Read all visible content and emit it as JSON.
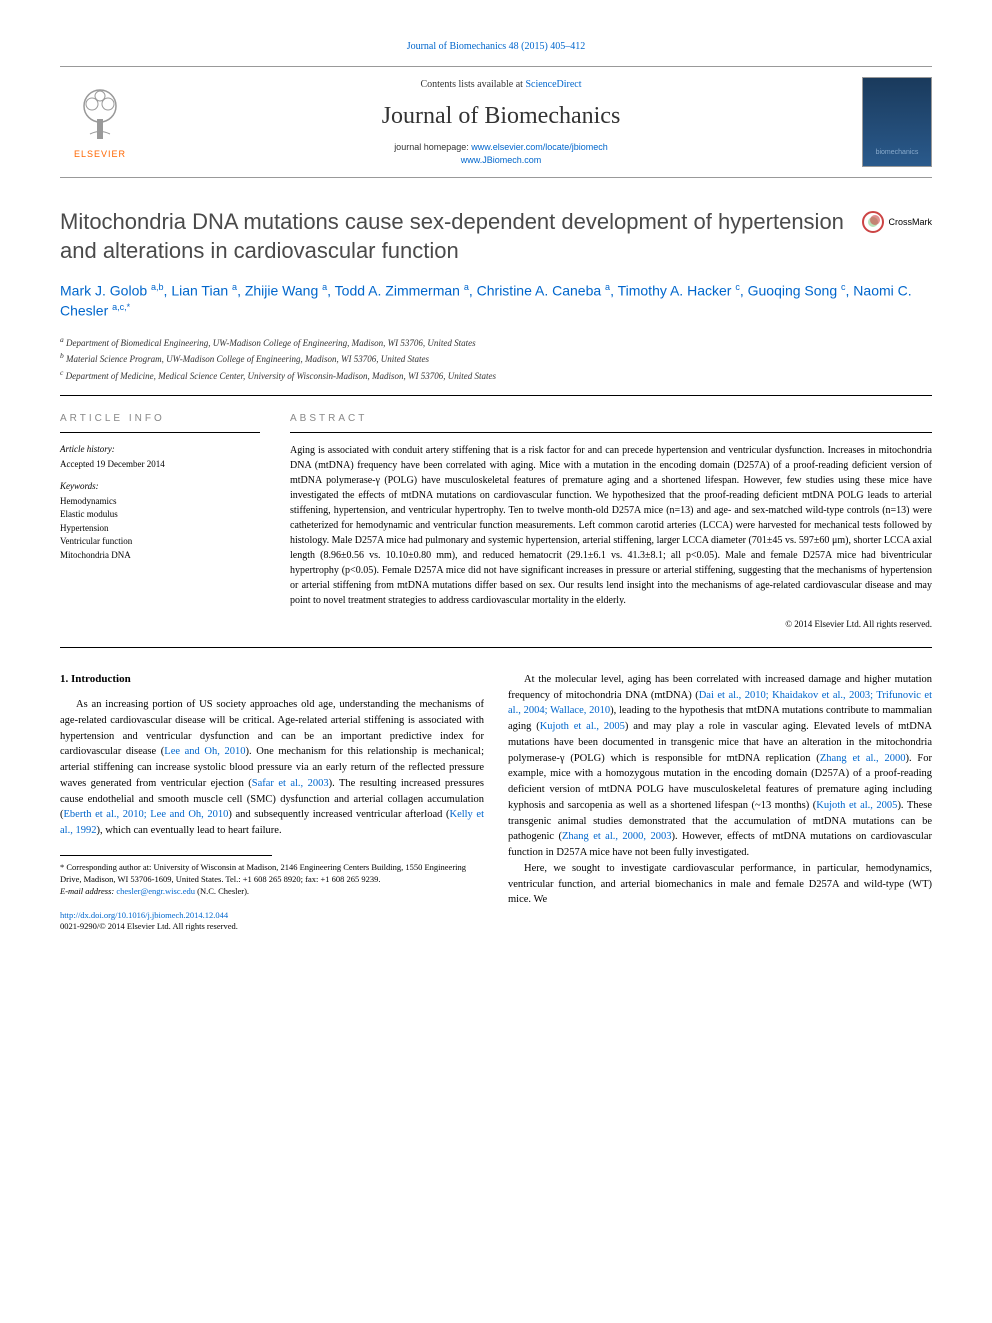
{
  "header_link": "Journal of Biomechanics 48 (2015) 405–412",
  "masthead": {
    "contents_prefix": "Contents lists available at ",
    "contents_link": "ScienceDirect",
    "journal_name": "Journal of Biomechanics",
    "homepage_prefix": "journal homepage: ",
    "homepage_url1": "www.elsevier.com/locate/jbiomech",
    "homepage_url2": "www.JBiomech.com",
    "elsevier_label": "ELSEVIER",
    "cover_label": "biomechanics"
  },
  "crossmark_label": "CrossMark",
  "title": "Mitochondria DNA mutations cause sex-dependent development of hypertension and alterations in cardiovascular function",
  "authors_html": "Mark J. Golob <sup>a,b</sup>, Lian Tian <sup>a</sup>, Zhijie Wang <sup>a</sup>, Todd A. Zimmerman <sup>a</sup>, Christine A. Caneba <sup>a</sup>, Timothy A. Hacker <sup>c</sup>, Guoqing Song <sup>c</sup>, Naomi C. Chesler <sup>a,c,*</sup>",
  "affiliations": {
    "a": "Department of Biomedical Engineering, UW-Madison College of Engineering, Madison, WI 53706, United States",
    "b": "Material Science Program, UW-Madison College of Engineering, Madison, WI 53706, United States",
    "c": "Department of Medicine, Medical Science Center, University of Wisconsin-Madison, Madison, WI 53706, United States"
  },
  "info": {
    "heading": "ARTICLE INFO",
    "history_label": "Article history:",
    "history_text": "Accepted 19 December 2014",
    "keywords_label": "Keywords:",
    "keywords": [
      "Hemodynamics",
      "Elastic modulus",
      "Hypertension",
      "Ventricular function",
      "Mitochondria DNA"
    ]
  },
  "abstract": {
    "heading": "ABSTRACT",
    "text": "Aging is associated with conduit artery stiffening that is a risk factor for and can precede hypertension and ventricular dysfunction. Increases in mitochondria DNA (mtDNA) frequency have been correlated with aging. Mice with a mutation in the encoding domain (D257A) of a proof-reading deficient version of mtDNA polymerase-γ (POLG) have musculoskeletal features of premature aging and a shortened lifespan. However, few studies using these mice have investigated the effects of mtDNA mutations on cardiovascular function. We hypothesized that the proof-reading deficient mtDNA POLG leads to arterial stiffening, hypertension, and ventricular hypertrophy. Ten to twelve month-old D257A mice (n=13) and age- and sex-matched wild-type controls (n=13) were catheterized for hemodynamic and ventricular function measurements. Left common carotid arteries (LCCA) were harvested for mechanical tests followed by histology. Male D257A mice had pulmonary and systemic hypertension, arterial stiffening, larger LCCA diameter (701±45 vs. 597±60 μm), shorter LCCA axial length (8.96±0.56 vs. 10.10±0.80 mm), and reduced hematocrit (29.1±6.1 vs. 41.3±8.1; all p<0.05). Male and female D257A mice had biventricular hypertrophy (p<0.05). Female D257A mice did not have significant increases in pressure or arterial stiffening, suggesting that the mechanisms of hypertension or arterial stiffening from mtDNA mutations differ based on sex. Our results lend insight into the mechanisms of age-related cardiovascular disease and may point to novel treatment strategies to address cardiovascular mortality in the elderly.",
    "copyright": "© 2014 Elsevier Ltd. All rights reserved."
  },
  "intro": {
    "heading": "1. Introduction",
    "para1_pre": "As an increasing portion of US society approaches old age, understanding the mechanisms of age-related cardiovascular disease will be critical. Age-related arterial stiffening is associated with hypertension and ventricular dysfunction and can be an important predictive index for cardiovascular disease (",
    "ref1": "Lee and Oh, 2010",
    "para1_mid1": "). One mechanism for this relationship is mechanical; arterial stiffening can increase systolic blood pressure via an early return of the reflected pressure waves generated from ventricular ejection (",
    "ref2": "Safar et al., 2003",
    "para1_mid2": "). The resulting increased pressures cause endothelial and smooth muscle cell (SMC) dysfunction and arterial collagen accumulation (",
    "ref3": "Eberth et al., 2010; Lee and Oh, 2010",
    "para1_mid3": ") and subsequently increased ventricular afterload (",
    "ref4": "Kelly et al., 1992",
    "para1_post": "), which can eventually lead to heart failure.",
    "para2_pre": "At the molecular level, aging has been correlated with increased damage and higher mutation frequency of mitochondria DNA (mtDNA) (",
    "ref5": "Dai et al., 2010; Khaidakov et al., 2003; Trifunovic et al., 2004; Wallace, 2010",
    "para2_mid1": "), leading to the hypothesis that mtDNA mutations contribute to mammalian aging (",
    "ref6": "Kujoth et al., 2005",
    "para2_mid2": ") and may play a role in vascular aging. Elevated levels of mtDNA mutations have been documented in transgenic mice that have an alteration in the mitochondria polymerase-γ (POLG) which is responsible for mtDNA replication (",
    "ref7": "Zhang et al., 2000",
    "para2_mid3": "). For example, mice with a homozygous mutation in the encoding domain (D257A) of a proof-reading deficient version of mtDNA POLG have musculoskeletal features of premature aging including kyphosis and sarcopenia as well as a shortened lifespan (~13 months) (",
    "ref8": "Kujoth et al., 2005",
    "para2_mid4": "). These transgenic animal studies demonstrated that the accumulation of mtDNA mutations can be pathogenic (",
    "ref9": "Zhang et al., 2000, 2003",
    "para2_post": "). However, effects of mtDNA mutations on cardiovascular function in D257A mice have not been fully investigated.",
    "para3": "Here, we sought to investigate cardiovascular performance, in particular, hemodynamics, ventricular function, and arterial biomechanics in male and female D257A and wild-type (WT) mice. We"
  },
  "footnote": {
    "corr_label": "* Corresponding author at: University of Wisconsin at Madison, 2146 Engineering Centers Building, 1550 Engineering Drive, Madison, WI 53706-1609, United States. Tel.: +1 608 265 8920; fax: +1 608 265 9239.",
    "email_label": "E-mail address: ",
    "email": "chesler@engr.wisc.edu",
    "email_suffix": " (N.C. Chesler).",
    "doi": "http://dx.doi.org/10.1016/j.jbiomech.2014.12.044",
    "issn": "0021-9290/© 2014 Elsevier Ltd. All rights reserved."
  },
  "colors": {
    "link": "#0066cc",
    "elsevier_orange": "#ff6600",
    "title_gray": "#4a4a4a",
    "heading_gray": "#888888"
  }
}
